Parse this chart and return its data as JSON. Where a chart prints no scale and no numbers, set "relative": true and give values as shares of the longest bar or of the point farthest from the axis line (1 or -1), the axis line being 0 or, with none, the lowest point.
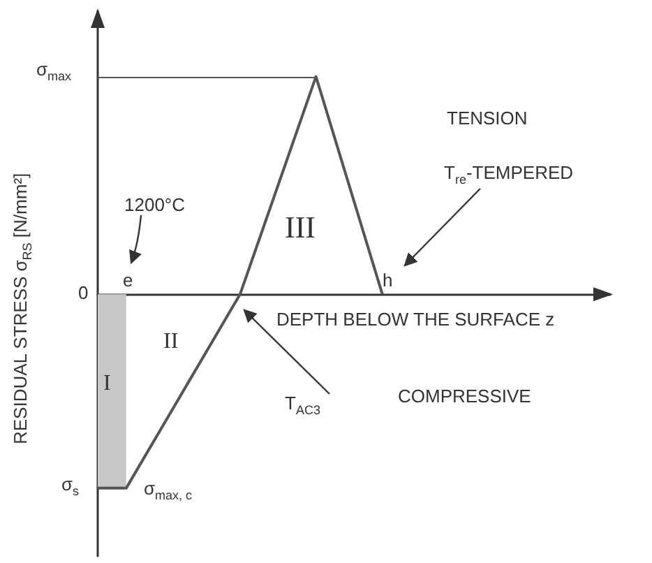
{
  "chart_data": {
    "type": "line",
    "relative": true,
    "ylabel": "RESIDUAL STRESS σ$_{RS}$ [N/mm²]",
    "xlabel": "DEPTH BELOW THE SURFACE z",
    "categories": [
      null,
      null,
      null,
      null,
      null,
      null,
      null,
      null,
      null,
      null,
      null,
      null,
      null,
      null,
      null,
      null,
      null,
      null,
      null,
      null,
      null,
      null,
      null,
      null,
      null,
      null,
      null,
      null,
      null,
      null,
      null,
      null,
      null,
      null,
      null,
      null,
      null,
      null,
      null,
      null,
      null,
      null,
      null,
      null,
      null,
      null,
      null,
      null,
      null,
      null,
      null,
      null,
      null,
      null,
      null
    ],
    "series": [
      {
        "type": "area",
        "color": "#c8c8c8",
        "values": [
          -0.89,
          -0.89,
          -0.89,
          -0.89,
          null,
          null,
          null,
          null,
          null,
          null,
          null,
          null,
          null,
          null,
          null,
          null,
          null,
          null,
          null,
          null,
          null,
          null,
          null,
          null,
          null,
          null,
          null,
          null,
          null,
          null,
          null,
          null,
          null,
          null,
          null,
          null,
          null,
          null,
          null,
          null,
          null,
          null,
          null,
          null,
          null,
          null,
          null,
          null,
          null,
          null,
          null,
          null,
          null,
          null,
          null
        ]
      },
      {
        "color": "#555555",
        "values": [
          -0.89,
          null,
          null,
          -0.89,
          null,
          null,
          null,
          null,
          null,
          null,
          null,
          null,
          null,
          null,
          null,
          0,
          null,
          null,
          null,
          null,
          null,
          null,
          null,
          1,
          null,
          null,
          null,
          null,
          null,
          null,
          0,
          null,
          null,
          null,
          null,
          null,
          null,
          null,
          null,
          null,
          null,
          null,
          null,
          null,
          null,
          null,
          null,
          null,
          null,
          null,
          null,
          null,
          null,
          null,
          null
        ]
      }
    ],
    "ref_lines": [
      {
        "axis": "y",
        "value": 1,
        "label": "σ$_{max}$"
      }
    ],
    "annotations": [
      "0",
      "σ$_{s}$",
      "σ$_{max, c}$",
      "e",
      "h",
      "1200°C",
      "T$_{re}$-TEMPERED",
      "T$_{AC3}$",
      "I",
      "II",
      "III",
      "TENSION",
      "COMPRESSIVE"
    ],
    "grid": false,
    "line_style": "solid"
  }
}
